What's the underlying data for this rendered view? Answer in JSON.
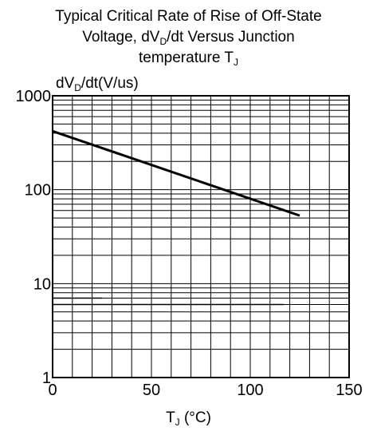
{
  "chart_data": {
    "type": "line",
    "title_lines": [
      {
        "text": "Typical Critical Rate of Rise of Off-State"
      },
      {
        "text": "Voltage, dV",
        "sub": "D",
        "after": "/dt Versus  Junction"
      },
      {
        "text": "temperature T",
        "sub": "J",
        "after": ""
      }
    ],
    "ylabel": {
      "pre": "dV",
      "sub": "D",
      "post": "/dt(V/us)"
    },
    "xlabel": {
      "pre": "T",
      "sub": "J",
      "post": " (°C)"
    },
    "x_scale": "linear",
    "y_scale": "log",
    "xlim": [
      0,
      150
    ],
    "ylim": [
      1,
      1000
    ],
    "x_ticks": [
      0,
      50,
      100,
      150
    ],
    "y_ticks": [
      1,
      10,
      100,
      1000
    ],
    "x_tick_labels": [
      "0",
      "50",
      "100",
      "150"
    ],
    "y_tick_labels": [
      "1",
      "10",
      "100",
      "1000"
    ],
    "grid": true,
    "series": [
      {
        "x": [
          0,
          125
        ],
        "y": [
          420,
          53
        ],
        "style": "thick"
      },
      {
        "x": [
          0,
          25
        ],
        "y": [
          7,
          7
        ],
        "style": "thin"
      },
      {
        "x": [
          0,
          117
        ],
        "y": [
          6,
          6
        ],
        "style": "thin"
      }
    ]
  }
}
